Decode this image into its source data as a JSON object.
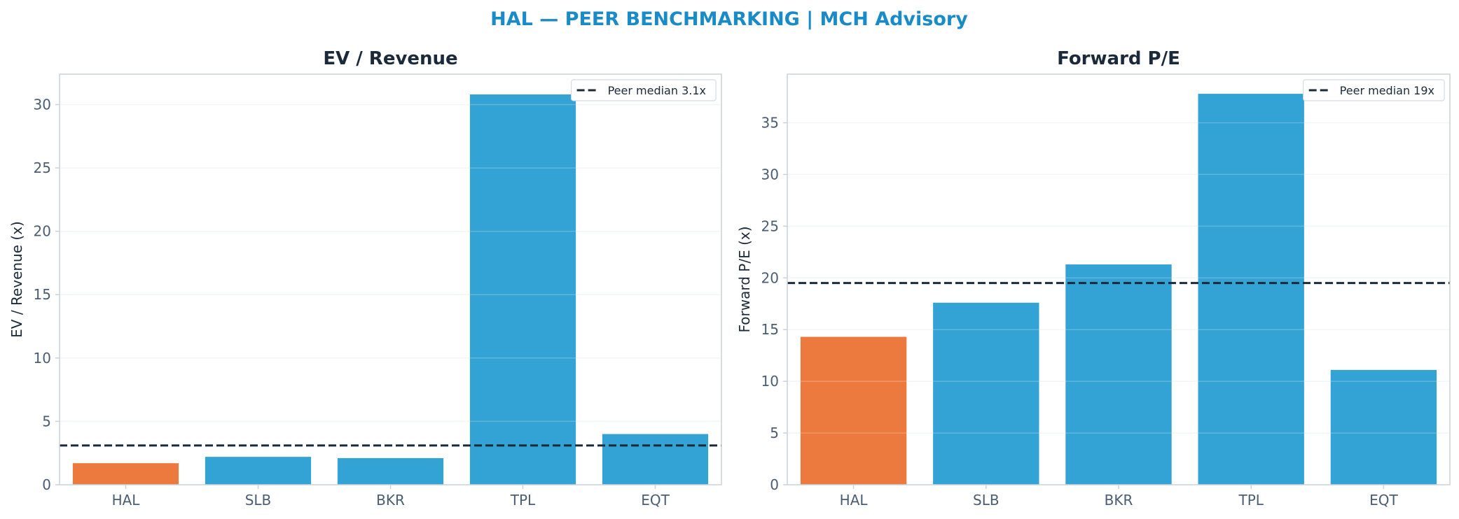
{
  "suptitle": "HAL — PEER BENCHMARKING | MCH Advisory",
  "colors": {
    "title": "#1a8bc9",
    "highlight": "#ec7a3f",
    "peer": "#33a2d4",
    "median_line": "#1b2a3a",
    "axis_text": "#4a5d72",
    "spine": "#c9d3dc",
    "grid": "#eef2f5"
  },
  "chart_data": [
    {
      "type": "bar",
      "title": "EV / Revenue",
      "xlabel": "",
      "ylabel": "EV / Revenue (x)",
      "categories": [
        "HAL",
        "SLB",
        "BKR",
        "TPL",
        "EQT"
      ],
      "values": [
        1.7,
        2.2,
        2.1,
        30.8,
        4.0
      ],
      "highlight": "HAL",
      "ylim": [
        0,
        32.4
      ],
      "yticks": [
        0,
        5,
        10,
        15,
        20,
        25,
        30
      ],
      "median": 3.1,
      "legend": "Peer median 3.1x",
      "legend_position": "top-right",
      "grid": true
    },
    {
      "type": "bar",
      "title": "Forward P/E",
      "xlabel": "",
      "ylabel": "Forward P/E (x)",
      "categories": [
        "HAL",
        "SLB",
        "BKR",
        "TPL",
        "EQT"
      ],
      "values": [
        14.3,
        17.6,
        21.3,
        37.8,
        11.1
      ],
      "highlight": "HAL",
      "ylim": [
        0,
        39.7
      ],
      "yticks": [
        0,
        5,
        10,
        15,
        20,
        25,
        30,
        35
      ],
      "median": 19.5,
      "legend": "Peer median 19x",
      "legend_position": "top-right",
      "grid": true
    }
  ]
}
